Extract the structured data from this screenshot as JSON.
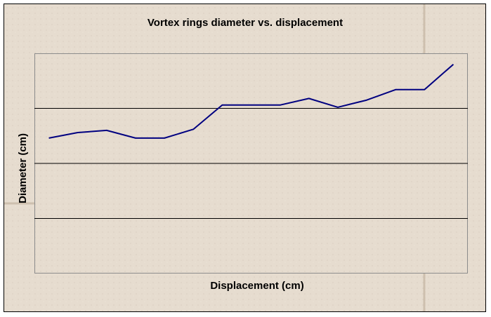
{
  "chart_data": {
    "type": "line",
    "title": "Vortex rings diameter vs. displacement",
    "x_label": "Displacement (cm)",
    "y_label": "Diameter (cm)",
    "categories": [
      null,
      null,
      null,
      null,
      null,
      null,
      null,
      null,
      null,
      null,
      null,
      null,
      null,
      null,
      null
    ],
    "series": [
      {
        "name": null,
        "color": "#000080",
        "values": [
          2.46,
          2.56,
          2.6,
          2.46,
          2.46,
          2.62,
          3.06,
          3.06,
          3.06,
          3.18,
          3.02,
          3.15,
          3.34,
          3.34,
          3.8
        ]
      }
    ],
    "ylim": [
      0,
      4
    ],
    "yticks": [
      1,
      2,
      3
    ],
    "grid": true,
    "tick_labels": false
  }
}
